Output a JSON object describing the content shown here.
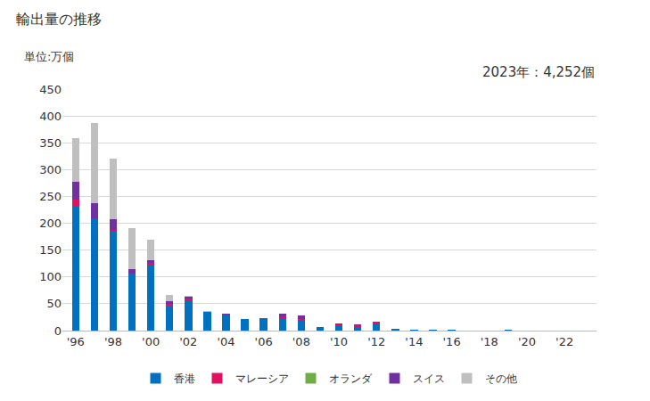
{
  "chart_data": {
    "type": "bar",
    "title": "輸出量の推移",
    "ylabel": "単位:万個",
    "annotations": [
      "2023年：4,252個"
    ],
    "stacked": true,
    "grid": true,
    "legend": "bottom",
    "categories": [
      "'96",
      null,
      "'98",
      null,
      "'00",
      null,
      "'02",
      null,
      "'04",
      null,
      "'06",
      null,
      "'08",
      null,
      "'10",
      null,
      "'12",
      null,
      "'14",
      null,
      "'16",
      null,
      "'18",
      null,
      "'20",
      null,
      "'22",
      null
    ],
    "ylim": [
      0,
      450
    ],
    "yticks": [
      0,
      50,
      100,
      150,
      200,
      250,
      300,
      350,
      400,
      450
    ],
    "series": [
      {
        "name": "香港",
        "color": "#0070c0",
        "values": [
          232,
          207,
          185,
          105,
          122,
          46,
          55,
          35,
          28,
          21,
          22,
          24,
          20,
          5,
          10,
          7,
          13,
          3,
          2,
          1,
          1,
          0.5,
          0.5,
          2,
          0.5,
          0.5,
          0.3,
          0.4
        ]
      },
      {
        "name": "マレーシア",
        "color": "#e0115f",
        "values": [
          12,
          3,
          3,
          2,
          5,
          3,
          5,
          0,
          2,
          1,
          1,
          2,
          2,
          1,
          2,
          3,
          3,
          0,
          0,
          0,
          0,
          0,
          0,
          0,
          0,
          0,
          0,
          0
        ]
      },
      {
        "name": "オランダ",
        "color": "#70ad47",
        "values": [
          0,
          0,
          0,
          0,
          0,
          0,
          0,
          0,
          0,
          0,
          0,
          0,
          0,
          0,
          0,
          0,
          0,
          0,
          0,
          0,
          0,
          0,
          0,
          0,
          0,
          0,
          0,
          0
        ]
      },
      {
        "name": "スイス",
        "color": "#7030a0",
        "values": [
          34,
          28,
          20,
          8,
          5,
          5,
          3,
          0,
          1,
          0,
          0,
          5,
          7,
          0,
          1,
          2,
          1,
          1,
          0,
          0,
          0,
          0,
          0,
          0,
          0,
          0,
          0,
          0
        ]
      },
      {
        "name": "その他",
        "color": "#bfbfbf",
        "values": [
          80,
          149,
          112,
          76,
          38,
          13,
          2,
          1,
          0,
          0,
          0,
          0,
          0,
          0,
          0,
          0,
          0,
          0,
          0,
          0,
          0,
          0,
          0,
          0,
          0,
          0,
          0,
          0
        ]
      }
    ]
  }
}
